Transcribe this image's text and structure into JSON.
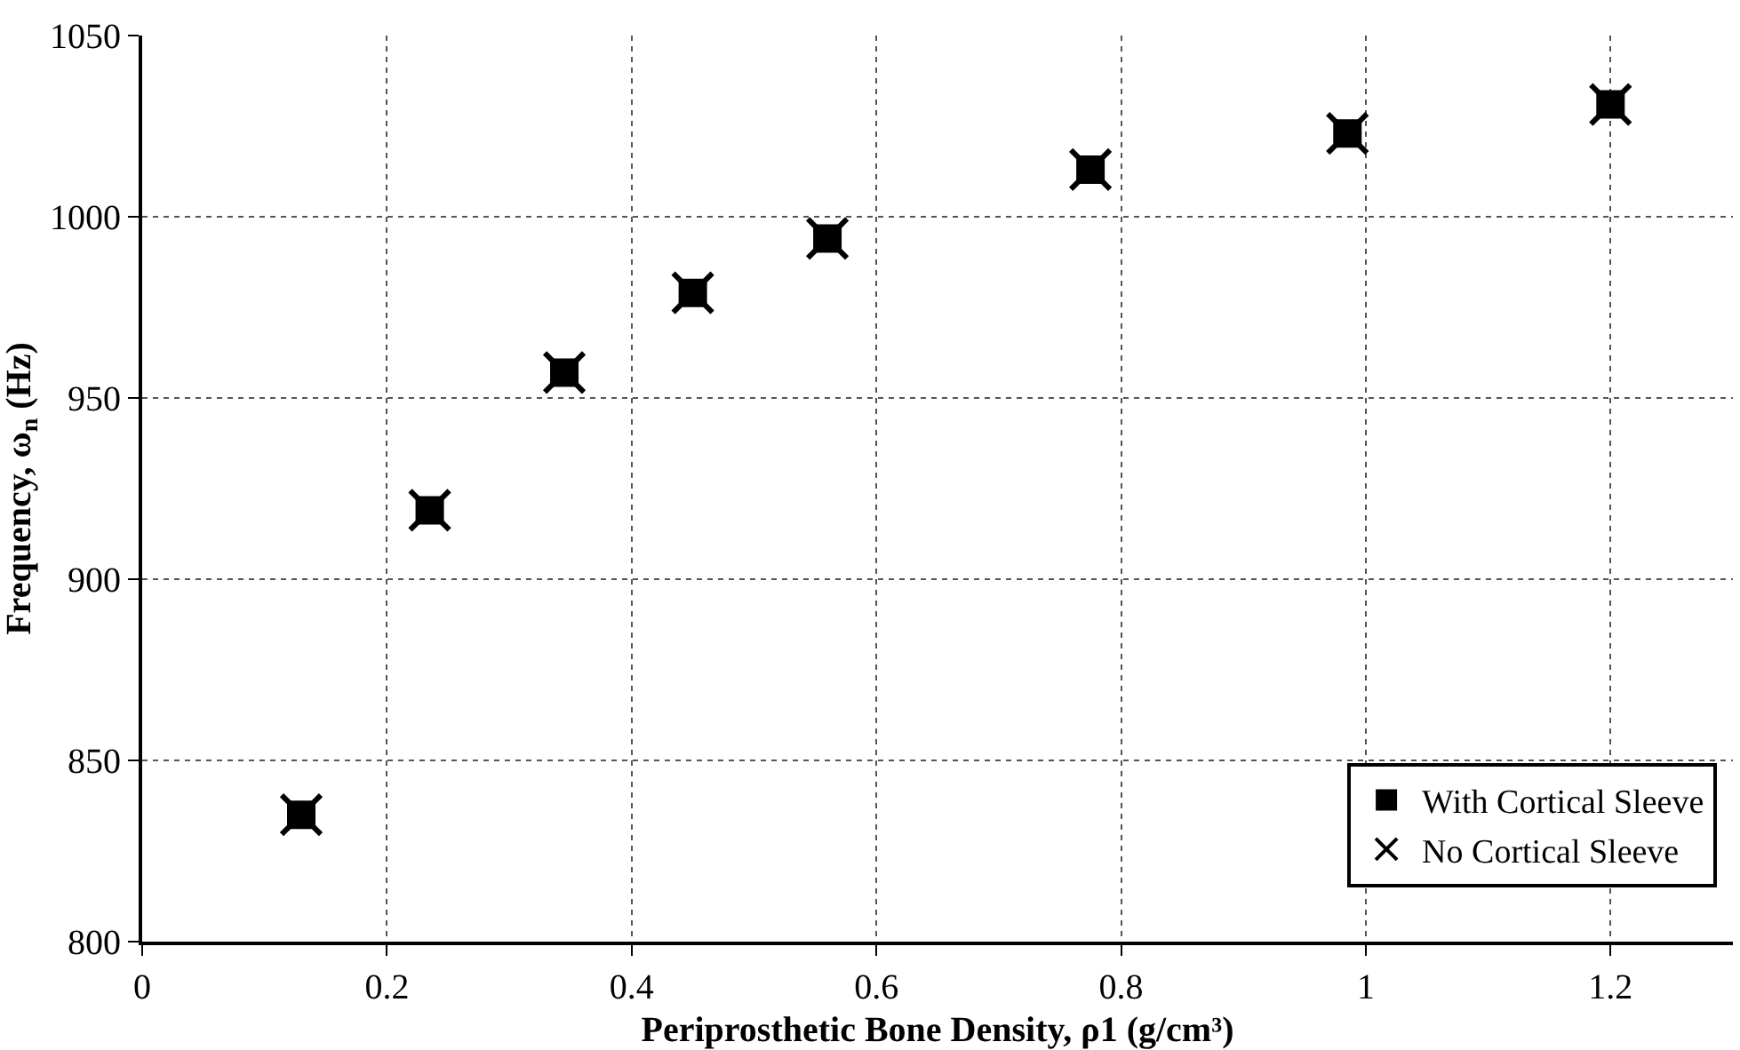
{
  "chart_data": {
    "type": "scatter",
    "xlabel": "Periprosthetic Bone Density, ρ1 (g/cm³)",
    "ylabel": "Frequency, ω$_{n}$ (Hz)",
    "x": [
      0.13,
      0.235,
      0.345,
      0.45,
      0.56,
      0.775,
      0.985,
      1.2
    ],
    "series": [
      {
        "name": "With Cortical Sleeve",
        "color": "#000000",
        "marker": "square",
        "values": [
          835,
          919,
          957,
          979,
          994,
          1013,
          1023,
          1031
        ]
      },
      {
        "name": "No Cortical Sleeve",
        "color": "#000000",
        "marker": "cross",
        "values": [
          835,
          919,
          957,
          979,
          994,
          1013,
          1023,
          1031
        ]
      }
    ],
    "xlim": [
      0,
      1.3
    ],
    "xticks": [
      0,
      0.2,
      0.4,
      0.6,
      0.8,
      1,
      1.2
    ],
    "ylim": [
      800,
      1050
    ],
    "yticks": [
      800,
      850,
      900,
      950,
      1000,
      1050
    ],
    "grid": true,
    "legend": "bottom right"
  }
}
